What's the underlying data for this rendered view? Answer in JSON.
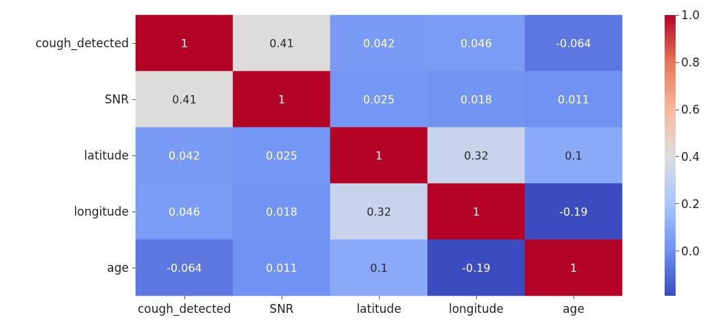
{
  "chart_data": {
    "type": "heatmap",
    "categories": [
      "cough_detected",
      "SNR",
      "latitude",
      "longitude",
      "age"
    ],
    "y_categories": [
      "cough_detected",
      "SNR",
      "latitude",
      "longitude",
      "age"
    ],
    "cells": [
      [
        1,
        0.41,
        0.042,
        0.046,
        -0.064
      ],
      [
        0.41,
        1,
        0.025,
        0.018,
        0.011
      ],
      [
        0.042,
        0.025,
        1,
        0.32,
        0.1
      ],
      [
        0.046,
        0.018,
        0.32,
        1,
        -0.19
      ],
      [
        -0.064,
        0.011,
        0.1,
        -0.19,
        1
      ]
    ],
    "clim": [
      -0.19,
      1
    ],
    "cticks": [
      {
        "value": 0,
        "label": "0.0"
      },
      {
        "value": 0.2,
        "label": "0.2"
      },
      {
        "value": 0.4,
        "label": "0.4"
      },
      {
        "value": 0.6,
        "label": "0.6"
      },
      {
        "value": 0.8,
        "label": "0.8"
      },
      {
        "value": 1,
        "label": "1.0"
      }
    ],
    "data_labels": true
  }
}
